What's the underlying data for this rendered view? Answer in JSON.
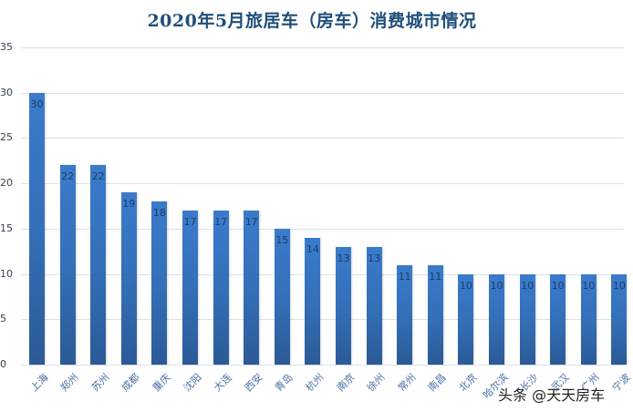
{
  "chart_data": {
    "type": "bar",
    "title": "2020年5月旅居车（房车）消费城市情况",
    "xlabel": "",
    "ylabel": "",
    "ylim": [
      0,
      35
    ],
    "yticks": [
      0,
      5,
      10,
      15,
      20,
      25,
      30,
      35
    ],
    "grid": true,
    "legend": null,
    "categories": [
      "上海",
      "郑州",
      "苏州",
      "成都",
      "重庆",
      "沈阳",
      "大连",
      "西安",
      "青岛",
      "杭州",
      "南京",
      "徐州",
      "常州",
      "南昌",
      "北京",
      "哈尔滨",
      "长沙",
      "武汉",
      "广州",
      "宁波"
    ],
    "values": [
      30,
      22,
      22,
      19,
      18,
      17,
      17,
      17,
      15,
      14,
      13,
      13,
      11,
      11,
      10,
      10,
      10,
      10,
      10,
      10
    ],
    "data_labels": true,
    "bar_color_top": "#3a7bcc",
    "bar_color_bottom": "#2b5a96"
  },
  "watermark": "头条 @天天房车"
}
